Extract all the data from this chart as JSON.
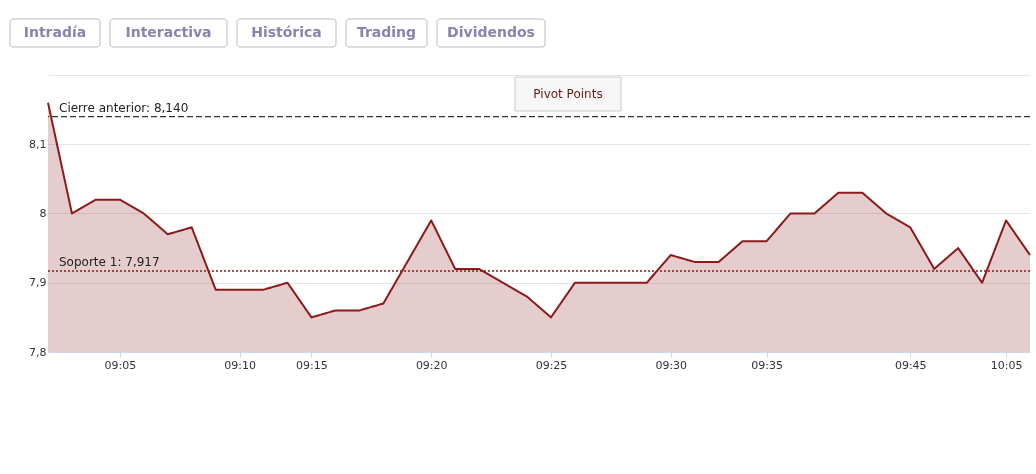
{
  "chart_data": {
    "type": "area",
    "annotations": [
      "Intradía",
      "Interactiva",
      "Histórica",
      "Trading",
      "Dividendos",
      "Pivot Points"
    ],
    "categories": [
      null,
      null,
      null,
      "09:05",
      null,
      null,
      null,
      null,
      "09:10",
      null,
      null,
      "09:15",
      null,
      null,
      null,
      null,
      "09:20",
      null,
      null,
      null,
      null,
      "09:25",
      null,
      null,
      null,
      null,
      "09:30",
      null,
      null,
      null,
      "09:35",
      null,
      null,
      null,
      null,
      null,
      "09:45",
      null,
      null,
      null,
      "10:05",
      null
    ],
    "series": [
      {
        "color": "#8b1a1a",
        "values": [
          8.16,
          8.0,
          8.02,
          8.02,
          8.0,
          7.97,
          7.98,
          7.89,
          7.89,
          7.89,
          7.9,
          7.85,
          7.86,
          7.86,
          7.87,
          7.93,
          7.99,
          7.92,
          7.92,
          7.9,
          7.88,
          7.85,
          7.9,
          7.9,
          7.9,
          7.9,
          7.94,
          7.93,
          7.93,
          7.96,
          7.96,
          8.0,
          8.0,
          8.03,
          8.03,
          8.0,
          7.98,
          7.92,
          7.95,
          7.9,
          7.99,
          7.94
        ]
      }
    ],
    "ylim": [
      7.8,
      8.2
    ],
    "yticks": [
      {
        "value": 7.8,
        "label": "7,8"
      },
      {
        "value": 7.9,
        "label": "7,9"
      },
      8,
      {
        "value": 8.1,
        "label": "8,1"
      },
      {
        "value": 8.2,
        "label": null
      }
    ],
    "ref_lines": [
      {
        "axis": "y",
        "value": 8.14,
        "label": "Cierre anterior: 8,140",
        "color": "#333333",
        "line_style": "dashed"
      },
      {
        "axis": "y",
        "value": 7.917,
        "label": "Soporte 1: 7,917",
        "color": "#8b1a1a",
        "line_style": "dotted"
      }
    ],
    "grid": "y",
    "marker": "none",
    "line_style": "solid"
  }
}
